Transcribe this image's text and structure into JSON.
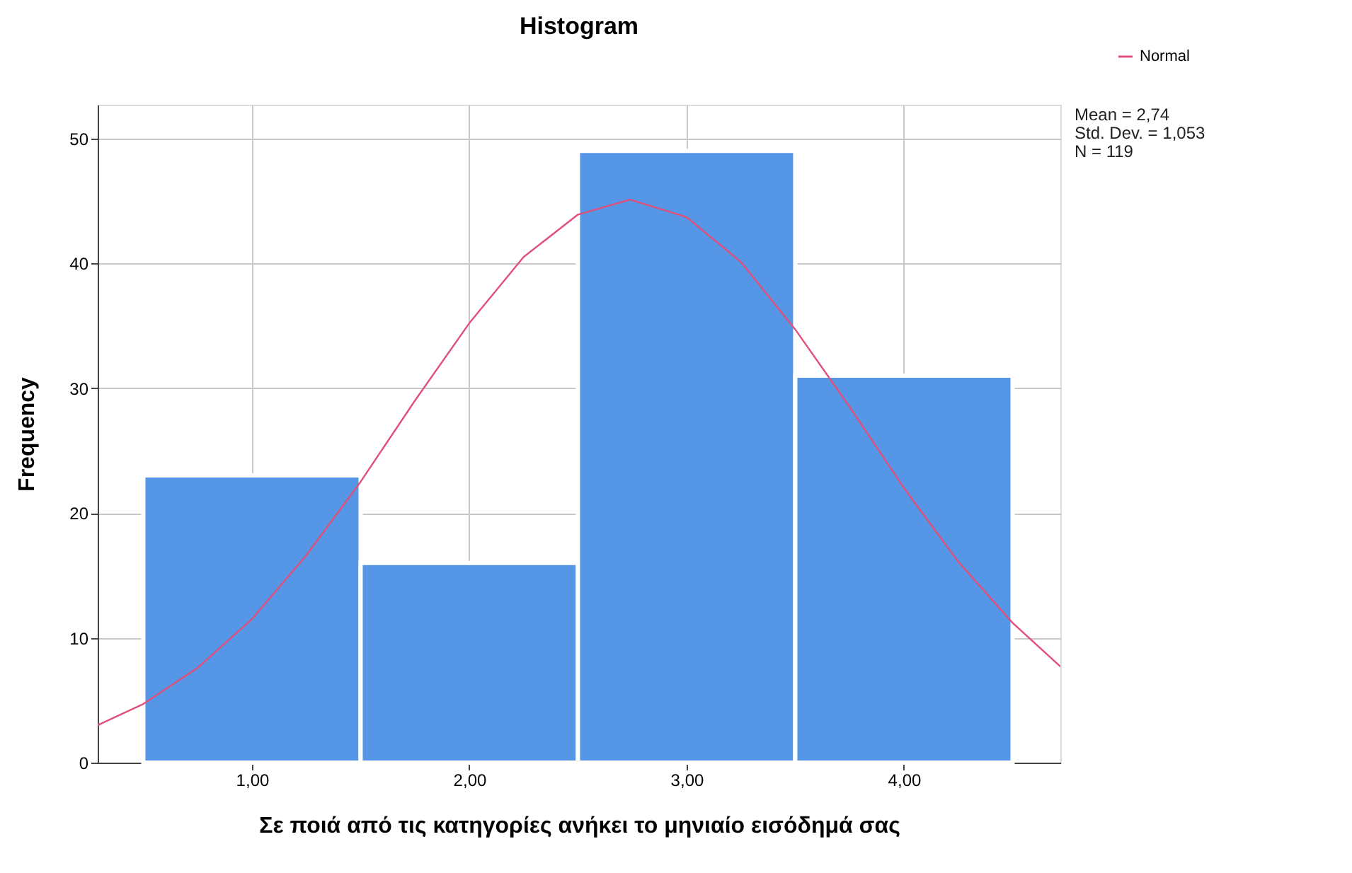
{
  "chart_data": {
    "type": "histogram",
    "title": "Histogram",
    "xlabel": "Σε ποιά από τις κατηγορίες ανήκει το μηνιαίο εισόδημά σας",
    "ylabel": "Frequency",
    "bins": [
      0.5,
      1.5,
      2.5,
      3.5,
      4.5
    ],
    "values": [
      23,
      16,
      49,
      31
    ],
    "color": "#5596e6",
    "series": [
      {
        "name": "Normal",
        "type": "line",
        "color": "#e0507a",
        "x": [
          0.29,
          0.5,
          0.75,
          1.0,
          1.25,
          1.5,
          1.75,
          2.0,
          2.25,
          2.5,
          2.74,
          3.0,
          3.25,
          3.5,
          3.75,
          4.0,
          4.25,
          4.5,
          4.72
        ],
        "values": [
          3.0,
          4.7,
          7.6,
          11.5,
          16.6,
          22.5,
          29.0,
          35.2,
          40.5,
          43.9,
          45.1,
          43.7,
          40.1,
          34.7,
          28.5,
          22.0,
          16.1,
          11.2,
          7.7
        ]
      }
    ],
    "xlim": [
      0.29,
      4.72
    ],
    "xticks": [
      {
        "value": 1,
        "label": "1,00"
      },
      {
        "value": 2,
        "label": "2,00"
      },
      {
        "value": 3,
        "label": "3,00"
      },
      {
        "value": 4,
        "label": "4,00"
      }
    ],
    "ylim": [
      0,
      52.7
    ],
    "yticks": [
      0,
      10,
      20,
      30,
      40,
      50
    ],
    "grid": true,
    "legend": "top right",
    "marker": "none",
    "line_style": "solid",
    "annotations": [
      "Mean = 2,74",
      "Std. Dev. = 1,053",
      "N = 119"
    ]
  }
}
